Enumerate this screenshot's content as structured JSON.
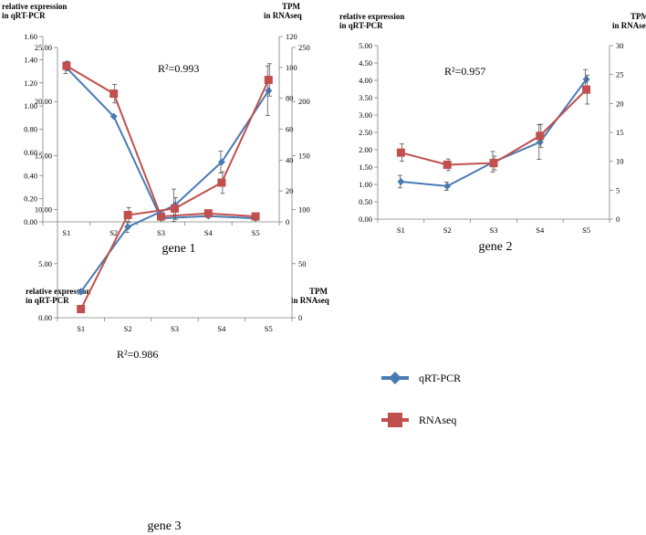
{
  "chart_data": [
    {
      "type": "line",
      "title": "gene 1",
      "annotation": "R²=0.993",
      "left_axis_title": [
        "relative expression",
        "in qRT-PCR"
      ],
      "right_axis_title": [
        "TPM",
        "in RNAseq"
      ],
      "categories": [
        "S1",
        "S2",
        "S3",
        "S4",
        "S5"
      ],
      "left_ylim": [
        0,
        1.6
      ],
      "left_ticks": [
        "0.00",
        "0.20",
        "0.40",
        "0.60",
        "0.80",
        "1.00",
        "1.20",
        "1.40",
        "1.60"
      ],
      "right_ylim": [
        0,
        120
      ],
      "right_ticks": [
        "0",
        "20",
        "40",
        "60",
        "80",
        "100",
        "120"
      ],
      "series": [
        {
          "name": "qRT-PCR",
          "axis": "left",
          "values": [
            1.33,
            0.91,
            0.03,
            0.05,
            0.03
          ],
          "errors": [
            0.05,
            0.0,
            0.01,
            0.01,
            0.01
          ]
        },
        {
          "name": "RNAseq",
          "axis": "right",
          "values": [
            101,
            83,
            3.5,
            5.5,
            3.5
          ],
          "errors": [
            3,
            6,
            1,
            1,
            1
          ]
        }
      ]
    },
    {
      "type": "line",
      "title": "gene 2",
      "annotation": "R²=0.957",
      "left_axis_title": [
        "relative expression",
        "in qRT-PCR"
      ],
      "right_axis_title": [
        "TPM",
        "in RNAseq"
      ],
      "categories": [
        "S1",
        "S2",
        "S3",
        "S4",
        "S5"
      ],
      "left_ylim": [
        0,
        5
      ],
      "left_ticks": [
        "0.00",
        "0.50",
        "1.00",
        "1.50",
        "2.00",
        "2.50",
        "3.00",
        "3.50",
        "4.00",
        "4.50",
        "5.00"
      ],
      "right_ylim": [
        0,
        30
      ],
      "right_ticks": [
        "0",
        "5",
        "10",
        "15",
        "20",
        "25",
        "30"
      ],
      "series": [
        {
          "name": "qRT-PCR",
          "axis": "left",
          "values": [
            1.08,
            0.95,
            1.65,
            2.22,
            4.03
          ],
          "errors": [
            0.18,
            0.12,
            0.3,
            0.5,
            0.28
          ]
        },
        {
          "name": "RNAseq",
          "axis": "right",
          "values": [
            11.5,
            9.4,
            9.7,
            14.4,
            22.4
          ],
          "errors": [
            1.5,
            1.0,
            1.2,
            2.0,
            2.5
          ]
        }
      ]
    },
    {
      "type": "line",
      "title": "gene 3",
      "annotation": "R²=0.986",
      "left_axis_title": [
        "relative expression",
        "in qRT-PCR"
      ],
      "right_axis_title": [
        "TPM",
        "in RNAseq"
      ],
      "categories": [
        "S1",
        "S2",
        "S3",
        "S4",
        "S5"
      ],
      "left_ylim": [
        0,
        25
      ],
      "left_ticks": [
        "0.00",
        "5.00",
        "10.00",
        "15.00",
        "20.00",
        "25.00"
      ],
      "right_ylim": [
        0,
        250
      ],
      "right_ticks": [
        "0",
        "50",
        "100",
        "150",
        "200",
        "250"
      ],
      "series": [
        {
          "name": "qRT-PCR",
          "axis": "left",
          "values": [
            2.4,
            8.4,
            10.4,
            14.4,
            21.0
          ],
          "errors": [
            0.2,
            0.5,
            1.5,
            1.0,
            2.3
          ]
        },
        {
          "name": "RNAseq",
          "axis": "right",
          "values": [
            8,
            95,
            101,
            125,
            220
          ],
          "errors": [
            2,
            7,
            10,
            10,
            15
          ]
        }
      ]
    }
  ],
  "legend": [
    {
      "name": "qRT-PCR",
      "color": "#4a7ab5",
      "marker": "diamond"
    },
    {
      "name": "RNAseq",
      "color": "#c0504d",
      "marker": "square"
    }
  ]
}
